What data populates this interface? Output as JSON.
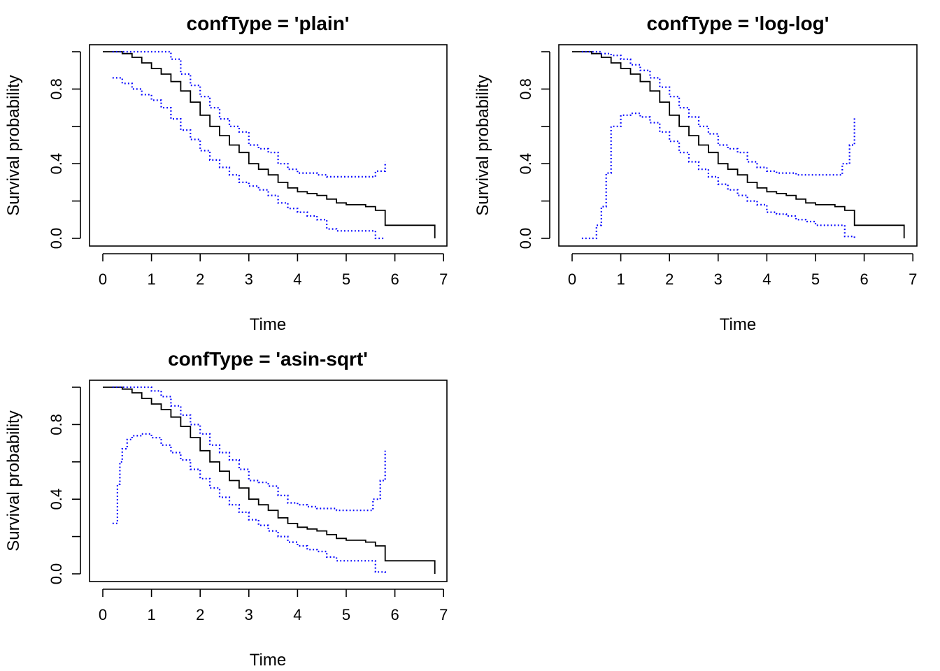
{
  "colors": {
    "estimate": "#000000",
    "confidence_band": "#0000ff",
    "background": "#ffffff"
  },
  "chart_data": [
    {
      "type": "line",
      "title": "confType = 'plain'",
      "xlabel": "Time",
      "ylabel": "Survival probability",
      "xlim": [
        0,
        7
      ],
      "ylim": [
        0,
        1
      ],
      "xticks": [
        "0",
        "1",
        "2",
        "3",
        "4",
        "5",
        "6",
        "7"
      ],
      "yticks": [
        "0.0",
        "0.4",
        "0.8"
      ],
      "grid": false,
      "series": [
        {
          "role": "estimate",
          "style": "solid",
          "x": [
            0,
            0.2,
            0.4,
            0.6,
            0.8,
            1.0,
            1.2,
            1.4,
            1.6,
            1.8,
            2.0,
            2.2,
            2.4,
            2.6,
            2.8,
            3.0,
            3.2,
            3.4,
            3.6,
            3.8,
            4.0,
            4.2,
            4.4,
            4.6,
            4.8,
            5.0,
            5.2,
            5.4,
            5.6,
            5.8,
            6.0,
            6.2,
            6.4,
            6.6,
            6.82
          ],
          "y": [
            1.0,
            1.0,
            0.99,
            0.97,
            0.94,
            0.91,
            0.88,
            0.84,
            0.79,
            0.73,
            0.66,
            0.6,
            0.55,
            0.5,
            0.46,
            0.4,
            0.37,
            0.34,
            0.3,
            0.27,
            0.25,
            0.24,
            0.23,
            0.21,
            0.19,
            0.18,
            0.18,
            0.17,
            0.15,
            0.07,
            0.07,
            0.07,
            0.07,
            0.07,
            0.0
          ]
        },
        {
          "role": "upper",
          "style": "dotted",
          "x": [
            0.2,
            0.4,
            0.6,
            0.8,
            1.0,
            1.2,
            1.4,
            1.6,
            1.8,
            2.0,
            2.2,
            2.4,
            2.6,
            2.8,
            3.0,
            3.2,
            3.4,
            3.6,
            3.8,
            4.0,
            4.2,
            4.4,
            4.6,
            4.8,
            5.0,
            5.2,
            5.4,
            5.6,
            5.8
          ],
          "y": [
            1.0,
            1.0,
            1.0,
            1.0,
            1.0,
            1.0,
            0.96,
            0.88,
            0.82,
            0.76,
            0.7,
            0.64,
            0.6,
            0.57,
            0.5,
            0.48,
            0.46,
            0.4,
            0.37,
            0.35,
            0.35,
            0.34,
            0.33,
            0.33,
            0.33,
            0.33,
            0.33,
            0.36,
            0.41
          ]
        },
        {
          "role": "lower",
          "style": "dotted",
          "x": [
            0.2,
            0.4,
            0.6,
            0.8,
            1.0,
            1.2,
            1.4,
            1.6,
            1.8,
            2.0,
            2.2,
            2.4,
            2.6,
            2.8,
            3.0,
            3.2,
            3.4,
            3.6,
            3.8,
            4.0,
            4.2,
            4.4,
            4.6,
            4.8,
            5.0,
            5.2,
            5.4,
            5.6,
            5.8
          ],
          "y": [
            0.86,
            0.83,
            0.8,
            0.77,
            0.74,
            0.7,
            0.64,
            0.58,
            0.53,
            0.47,
            0.42,
            0.38,
            0.34,
            0.3,
            0.28,
            0.26,
            0.23,
            0.19,
            0.16,
            0.14,
            0.12,
            0.1,
            0.05,
            0.04,
            0.04,
            0.04,
            0.04,
            0.0,
            0.0
          ]
        }
      ]
    },
    {
      "type": "line",
      "title": "confType = 'log-log'",
      "xlabel": "Time",
      "ylabel": "Survival probability",
      "xlim": [
        0,
        7
      ],
      "ylim": [
        0,
        1
      ],
      "xticks": [
        "0",
        "1",
        "2",
        "3",
        "4",
        "5",
        "6",
        "7"
      ],
      "yticks": [
        "0.0",
        "0.4",
        "0.8"
      ],
      "grid": false,
      "series": [
        {
          "role": "estimate",
          "style": "solid",
          "x": [
            0,
            0.2,
            0.4,
            0.6,
            0.8,
            1.0,
            1.2,
            1.4,
            1.6,
            1.8,
            2.0,
            2.2,
            2.4,
            2.6,
            2.8,
            3.0,
            3.2,
            3.4,
            3.6,
            3.8,
            4.0,
            4.2,
            4.4,
            4.6,
            4.8,
            5.0,
            5.2,
            5.4,
            5.6,
            5.8,
            6.0,
            6.2,
            6.4,
            6.6,
            6.82
          ],
          "y": [
            1.0,
            1.0,
            0.99,
            0.97,
            0.94,
            0.91,
            0.88,
            0.84,
            0.79,
            0.73,
            0.66,
            0.6,
            0.55,
            0.5,
            0.46,
            0.4,
            0.37,
            0.34,
            0.3,
            0.27,
            0.25,
            0.24,
            0.23,
            0.21,
            0.19,
            0.18,
            0.18,
            0.17,
            0.15,
            0.07,
            0.07,
            0.07,
            0.07,
            0.07,
            0.0
          ]
        },
        {
          "role": "upper",
          "style": "dotted",
          "x": [
            0.2,
            0.4,
            0.6,
            0.8,
            1.0,
            1.2,
            1.4,
            1.6,
            1.8,
            2.0,
            2.2,
            2.4,
            2.6,
            2.8,
            3.0,
            3.2,
            3.4,
            3.6,
            3.8,
            4.0,
            4.2,
            4.4,
            4.6,
            4.8,
            5.0,
            5.2,
            5.4,
            5.55,
            5.7,
            5.8
          ],
          "y": [
            1.0,
            1.0,
            0.99,
            0.98,
            0.96,
            0.93,
            0.9,
            0.86,
            0.81,
            0.76,
            0.7,
            0.65,
            0.6,
            0.56,
            0.5,
            0.48,
            0.46,
            0.41,
            0.38,
            0.36,
            0.35,
            0.35,
            0.34,
            0.34,
            0.34,
            0.34,
            0.34,
            0.4,
            0.5,
            0.65
          ]
        },
        {
          "role": "lower",
          "style": "dotted",
          "x": [
            0.2,
            0.45,
            0.5,
            0.6,
            0.7,
            0.8,
            1.0,
            1.2,
            1.4,
            1.6,
            1.8,
            2.0,
            2.2,
            2.4,
            2.6,
            2.8,
            3.0,
            3.2,
            3.4,
            3.6,
            3.8,
            4.0,
            4.2,
            4.4,
            4.6,
            4.8,
            5.0,
            5.2,
            5.4,
            5.55,
            5.6,
            5.8
          ],
          "y": [
            0.0,
            0.0,
            0.07,
            0.17,
            0.35,
            0.6,
            0.66,
            0.67,
            0.65,
            0.62,
            0.57,
            0.52,
            0.46,
            0.41,
            0.37,
            0.33,
            0.29,
            0.26,
            0.23,
            0.2,
            0.18,
            0.14,
            0.13,
            0.12,
            0.1,
            0.09,
            0.07,
            0.07,
            0.07,
            0.07,
            0.01,
            0.0
          ]
        }
      ]
    },
    {
      "type": "line",
      "title": "confType = 'asin-sqrt'",
      "xlabel": "Time",
      "ylabel": "Survival probability",
      "xlim": [
        0,
        7
      ],
      "ylim": [
        0,
        1
      ],
      "xticks": [
        "0",
        "1",
        "2",
        "3",
        "4",
        "5",
        "6",
        "7"
      ],
      "yticks": [
        "0.0",
        "0.4",
        "0.8"
      ],
      "grid": false,
      "series": [
        {
          "role": "estimate",
          "style": "solid",
          "x": [
            0,
            0.2,
            0.4,
            0.6,
            0.8,
            1.0,
            1.2,
            1.4,
            1.6,
            1.8,
            2.0,
            2.2,
            2.4,
            2.6,
            2.8,
            3.0,
            3.2,
            3.4,
            3.6,
            3.8,
            4.0,
            4.2,
            4.4,
            4.6,
            4.8,
            5.0,
            5.2,
            5.4,
            5.6,
            5.8,
            6.0,
            6.2,
            6.4,
            6.6,
            6.82
          ],
          "y": [
            1.0,
            1.0,
            0.99,
            0.97,
            0.94,
            0.91,
            0.88,
            0.84,
            0.79,
            0.73,
            0.66,
            0.6,
            0.55,
            0.5,
            0.46,
            0.4,
            0.37,
            0.34,
            0.3,
            0.27,
            0.25,
            0.24,
            0.23,
            0.21,
            0.19,
            0.18,
            0.18,
            0.17,
            0.15,
            0.07,
            0.07,
            0.07,
            0.07,
            0.07,
            0.0
          ]
        },
        {
          "role": "upper",
          "style": "dotted",
          "x": [
            0.2,
            0.4,
            0.6,
            0.8,
            1.0,
            1.2,
            1.4,
            1.6,
            1.8,
            2.0,
            2.2,
            2.4,
            2.6,
            2.8,
            3.0,
            3.2,
            3.4,
            3.6,
            3.8,
            4.0,
            4.2,
            4.4,
            4.6,
            4.8,
            5.0,
            5.2,
            5.4,
            5.55,
            5.7,
            5.8
          ],
          "y": [
            1.0,
            1.0,
            1.0,
            1.0,
            0.98,
            0.95,
            0.9,
            0.85,
            0.8,
            0.75,
            0.69,
            0.65,
            0.61,
            0.56,
            0.5,
            0.49,
            0.47,
            0.42,
            0.38,
            0.37,
            0.36,
            0.35,
            0.35,
            0.34,
            0.34,
            0.34,
            0.34,
            0.4,
            0.5,
            0.66
          ]
        },
        {
          "role": "lower",
          "style": "dotted",
          "x": [
            0.2,
            0.28,
            0.3,
            0.35,
            0.4,
            0.5,
            0.6,
            0.8,
            1.0,
            1.2,
            1.4,
            1.6,
            1.8,
            2.0,
            2.2,
            2.4,
            2.6,
            2.8,
            3.0,
            3.2,
            3.4,
            3.6,
            3.8,
            4.0,
            4.2,
            4.4,
            4.6,
            4.8,
            5.0,
            5.2,
            5.4,
            5.55,
            5.6,
            5.8
          ],
          "y": [
            0.27,
            0.27,
            0.48,
            0.6,
            0.67,
            0.72,
            0.74,
            0.75,
            0.73,
            0.69,
            0.65,
            0.61,
            0.56,
            0.51,
            0.46,
            0.41,
            0.37,
            0.33,
            0.29,
            0.26,
            0.23,
            0.2,
            0.17,
            0.15,
            0.13,
            0.12,
            0.09,
            0.07,
            0.07,
            0.07,
            0.07,
            0.07,
            0.01,
            0.0
          ]
        }
      ]
    }
  ]
}
